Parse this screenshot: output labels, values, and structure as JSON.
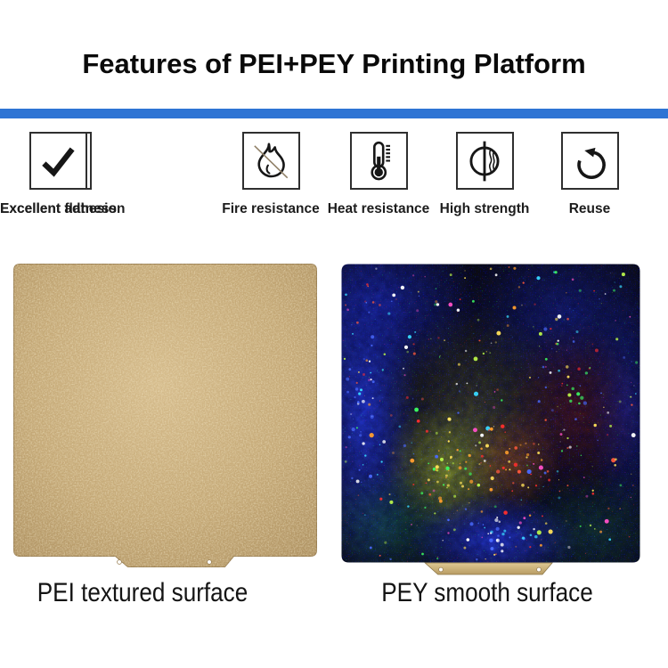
{
  "page": {
    "title": "Features of PEI+PEY Printing Platform",
    "divider_color": "#2e74d4",
    "background_color": "#ffffff"
  },
  "features": [
    {
      "label": "Fire resistance",
      "icon": "no-fire-icon"
    },
    {
      "label": "Heat resistance",
      "icon": "thermometer-icon"
    },
    {
      "label": "High strength",
      "icon": "coin-wave-icon"
    },
    {
      "label": "Reuse",
      "icon": "rotate-ccw-icon"
    },
    {
      "label": "Excellent adhesion",
      "icon": "checkmark-icon"
    },
    {
      "label": "Excellent flatness",
      "icon": "checkmark-icon"
    }
  ],
  "products": {
    "left": {
      "caption": "PEI textured surface",
      "surface": "gold powder-textured spring steel sheet",
      "base_color": "#c3a775"
    },
    "right": {
      "caption": "PEY smooth surface",
      "surface": "holographic glitter sheet",
      "base_color": "#0c0d12",
      "tab_color": "#d2b87f",
      "sparkle_palette": [
        "#ffe25a",
        "#b8f24a",
        "#3dff63",
        "#ff5a3c",
        "#ff2e2e",
        "#4a6aff",
        "#38d8ff",
        "#ff9e2e",
        "#ffffff",
        "#ff50c8"
      ]
    }
  }
}
